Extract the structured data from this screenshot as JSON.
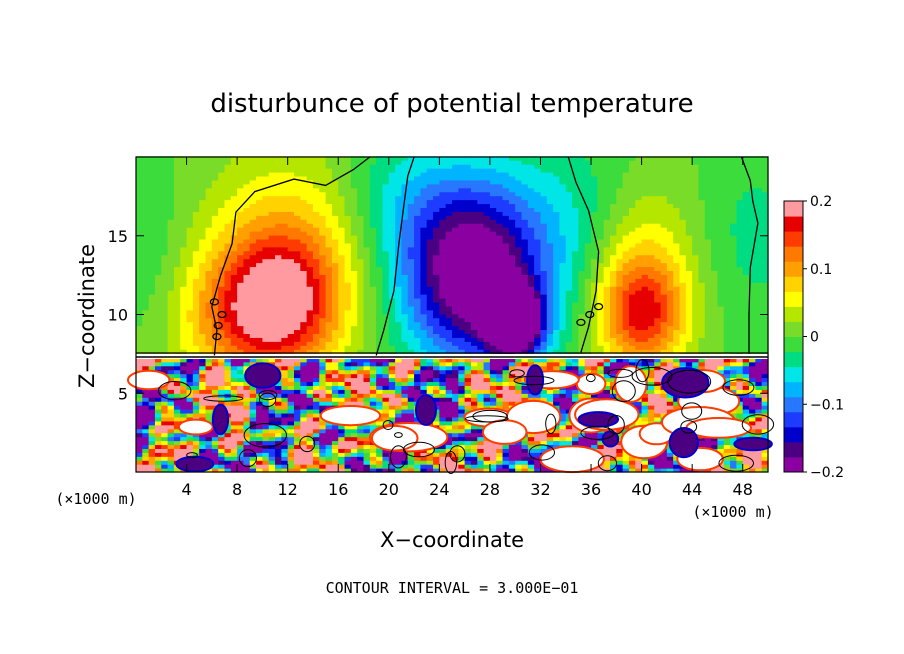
{
  "chart_data": {
    "type": "heatmap",
    "title": "disturbunce of potential temperature",
    "xlabel": "X−coordinate",
    "ylabel": "Z−coordinate",
    "x_unit": "(×1000 m)",
    "y_unit": "(×1000 m)",
    "x_ticks": [
      4,
      8,
      12,
      16,
      20,
      24,
      28,
      32,
      36,
      40,
      44,
      48
    ],
    "y_ticks": [
      5,
      10,
      15
    ],
    "xlim": [
      0,
      50
    ],
    "ylim": [
      0,
      20
    ],
    "colorbar": {
      "ticks": [
        0.2,
        0.1,
        0,
        -0.1,
        -0.2
      ],
      "tick_labels": [
        "0.2",
        "0.1",
        "0",
        "−0.1",
        "−0.2"
      ],
      "range": [
        -0.2,
        0.2
      ],
      "colors": [
        "#8b00a0",
        "#4b0082",
        "#0000cd",
        "#1e3cff",
        "#2878ff",
        "#00b4ff",
        "#00e6e6",
        "#00dc82",
        "#3cdc3c",
        "#78dc28",
        "#b4e600",
        "#ffff00",
        "#ffd200",
        "#ffa000",
        "#ff7800",
        "#ff3c00",
        "#e60000",
        "#ff9aa0"
      ]
    },
    "footer": "CONTOUR INTERVAL =  3.000E−01",
    "features": {
      "stratosphere_anomalies": [
        {
          "x": 11,
          "z": 10.5,
          "value": 0.17,
          "sx": 3.5,
          "sz": 3.0
        },
        {
          "x": 12,
          "z": 14,
          "value": 0.08,
          "sx": 4.5,
          "sz": 4.5
        },
        {
          "x": 6,
          "z": 9,
          "value": 0.04,
          "sx": 3,
          "sz": 3
        },
        {
          "x": 27,
          "z": 11,
          "value": -0.15,
          "sx": 4.0,
          "sz": 3.5
        },
        {
          "x": 26,
          "z": 15,
          "value": -0.12,
          "sx": 4.0,
          "sz": 3.5
        },
        {
          "x": 30,
          "z": 9.5,
          "value": -0.22,
          "sx": 1.5,
          "sz": 1.5
        },
        {
          "x": 20,
          "z": 18,
          "value": -0.03,
          "sx": 3.0,
          "sz": 3.0
        },
        {
          "x": 35,
          "z": 16,
          "value": -0.04,
          "sx": 4.0,
          "sz": 4.0
        },
        {
          "x": 40,
          "z": 10,
          "value": 0.15,
          "sx": 2.5,
          "sz": 2.5
        },
        {
          "x": 40,
          "z": 14,
          "value": 0.06,
          "sx": 3.0,
          "sz": 3.5
        },
        {
          "x": 49,
          "z": 15,
          "value": -0.03,
          "sx": 3,
          "sz": 4
        },
        {
          "x": 1,
          "z": 14,
          "value": -0.02,
          "sx": 2,
          "sz": 4
        }
      ],
      "interface_z": 7.3
    }
  }
}
